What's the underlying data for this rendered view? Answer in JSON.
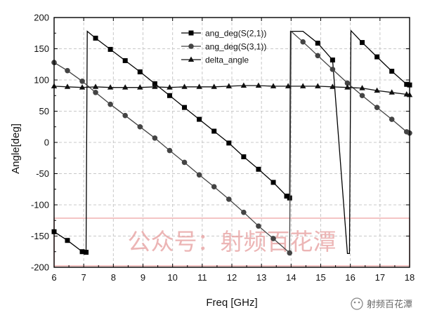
{
  "chart_data": {
    "type": "line",
    "xlabel": "Freq [GHz]",
    "ylabel": "Angle[deg]",
    "xlim": [
      6,
      18
    ],
    "ylim": [
      -200,
      200
    ],
    "xticks": [
      "6",
      "7",
      "8",
      "9",
      "10",
      "11",
      "12",
      "13",
      "14",
      "15",
      "16",
      "17",
      "18"
    ],
    "yticks": [
      "-200",
      "-150",
      "-100",
      "-50",
      "0",
      "50",
      "100",
      "150",
      "200"
    ],
    "grid": true,
    "legend_position": "top-center",
    "series": [
      {
        "name": "ang_deg(S(2,1))",
        "marker": "square",
        "color": "#000000",
        "points": [
          [
            6.0,
            -143
          ],
          [
            6.45,
            -157
          ],
          [
            6.95,
            -175
          ],
          [
            7.08,
            -176
          ],
          [
            7.12,
            178
          ],
          [
            7.4,
            167
          ],
          [
            7.9,
            149
          ],
          [
            8.4,
            131
          ],
          [
            8.9,
            113
          ],
          [
            9.4,
            94
          ],
          [
            9.9,
            75
          ],
          [
            10.4,
            56
          ],
          [
            10.9,
            37
          ],
          [
            11.4,
            18
          ],
          [
            11.9,
            -1
          ],
          [
            12.4,
            -23
          ],
          [
            12.9,
            -43
          ],
          [
            13.4,
            -64
          ],
          [
            13.85,
            -86
          ],
          [
            13.95,
            -89
          ],
          [
            13.98,
            178
          ],
          [
            14.4,
            178
          ],
          [
            14.9,
            159
          ],
          [
            15.4,
            132
          ],
          [
            15.9,
            -178
          ],
          [
            15.97,
            -178
          ],
          [
            16.02,
            179
          ],
          [
            16.4,
            160
          ],
          [
            16.9,
            137
          ],
          [
            17.4,
            114
          ],
          [
            17.9,
            93
          ],
          [
            18.0,
            92
          ]
        ]
      },
      {
        "name": "ang_deg(S(3,1))",
        "marker": "circle",
        "color": "#444444",
        "points": [
          [
            6.0,
            128
          ],
          [
            6.45,
            115
          ],
          [
            6.95,
            98
          ],
          [
            7.4,
            80
          ],
          [
            7.9,
            61
          ],
          [
            8.4,
            43
          ],
          [
            8.9,
            25
          ],
          [
            9.4,
            7
          ],
          [
            9.9,
            -13
          ],
          [
            10.4,
            -32
          ],
          [
            10.9,
            -52
          ],
          [
            11.4,
            -71
          ],
          [
            11.9,
            -91
          ],
          [
            12.4,
            -112
          ],
          [
            12.9,
            -134
          ],
          [
            13.4,
            -154
          ],
          [
            13.95,
            -177
          ],
          [
            14.0,
            178
          ],
          [
            14.4,
            161
          ],
          [
            14.9,
            139
          ],
          [
            15.4,
            117
          ],
          [
            15.9,
            95
          ],
          [
            16.4,
            75
          ],
          [
            16.9,
            56
          ],
          [
            17.4,
            37
          ],
          [
            17.9,
            17
          ],
          [
            18.0,
            15
          ]
        ]
      },
      {
        "name": "delta_angle",
        "marker": "triangle",
        "color": "#111111",
        "points": [
          [
            6.0,
            90
          ],
          [
            6.45,
            89
          ],
          [
            6.95,
            88
          ],
          [
            7.4,
            89
          ],
          [
            7.9,
            88
          ],
          [
            8.4,
            88
          ],
          [
            8.9,
            88
          ],
          [
            9.4,
            89
          ],
          [
            9.9,
            88
          ],
          [
            10.4,
            89
          ],
          [
            10.9,
            89
          ],
          [
            11.4,
            89
          ],
          [
            11.9,
            90
          ],
          [
            12.4,
            91
          ],
          [
            12.9,
            91
          ],
          [
            13.4,
            90
          ],
          [
            13.9,
            90
          ],
          [
            14.4,
            90
          ],
          [
            14.9,
            90
          ],
          [
            15.4,
            89
          ],
          [
            15.9,
            88
          ],
          [
            16.4,
            87
          ],
          [
            16.9,
            83
          ],
          [
            17.4,
            80
          ],
          [
            17.9,
            77
          ],
          [
            18.0,
            76
          ]
        ]
      }
    ]
  },
  "watermark": {
    "overlay_text": "公众号：射频百花潭",
    "credit_text": "射频百花潭",
    "color": "#e8a3a3"
  }
}
